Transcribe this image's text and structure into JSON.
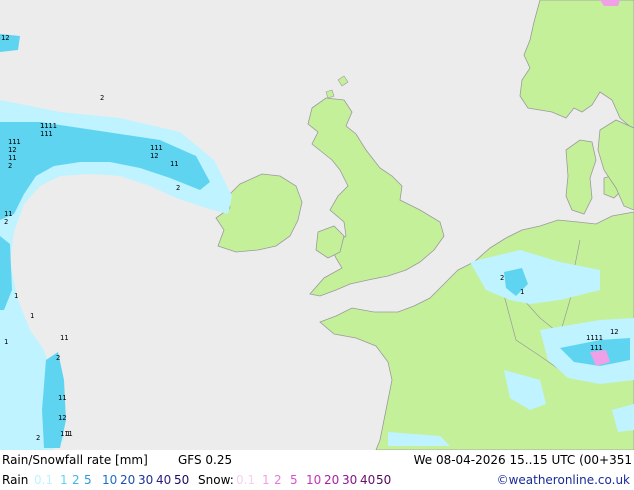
{
  "title": "Rain/Snowfall rate [mm]",
  "model": "GFS 0.25",
  "valid_time": "We 08-04-2026 15..15 UTC (00+351",
  "legend": {
    "rain_label": "Rain",
    "rain_values": [
      {
        "text": "0.1",
        "color": "#bff3ff"
      },
      {
        "text": "1",
        "color": "#5fd4f0"
      },
      {
        "text": "2",
        "color": "#3fb8e8"
      },
      {
        "text": "5",
        "color": "#2a9ad8"
      },
      {
        "text": "10",
        "color": "#1f6fc8"
      },
      {
        "text": "20",
        "color": "#1c4fb0"
      },
      {
        "text": "30",
        "color": "#1c2f98"
      },
      {
        "text": "40",
        "color": "#2a1c80"
      },
      {
        "text": "50",
        "color": "#1a0a60"
      }
    ],
    "snow_label": "Snow:",
    "snow_values": [
      {
        "text": "0.1",
        "color": "#f6d0f0"
      },
      {
        "text": "1",
        "color": "#f0a0e6"
      },
      {
        "text": "2",
        "color": "#e878dc"
      },
      {
        "text": "5",
        "color": "#dc50d0"
      },
      {
        "text": "10",
        "color": "#c832c0"
      },
      {
        "text": "20",
        "color": "#a81ea8"
      },
      {
        "text": "30",
        "color": "#88148c"
      },
      {
        "text": "40",
        "color": "#6a0c70"
      },
      {
        "text": "50",
        "color": "#500858"
      }
    ]
  },
  "credit": "©weatheronline.co.uk",
  "map_labels": [
    "1",
    "2",
    "11",
    "12",
    "111",
    "1111"
  ],
  "colors": {
    "sea": "#ececec",
    "land": "#c5f09a",
    "border": "#9a9a9a",
    "rain_light": "#bff3ff",
    "rain_medium": "#5fd4f0",
    "snow_light": "#f0a0e6"
  }
}
